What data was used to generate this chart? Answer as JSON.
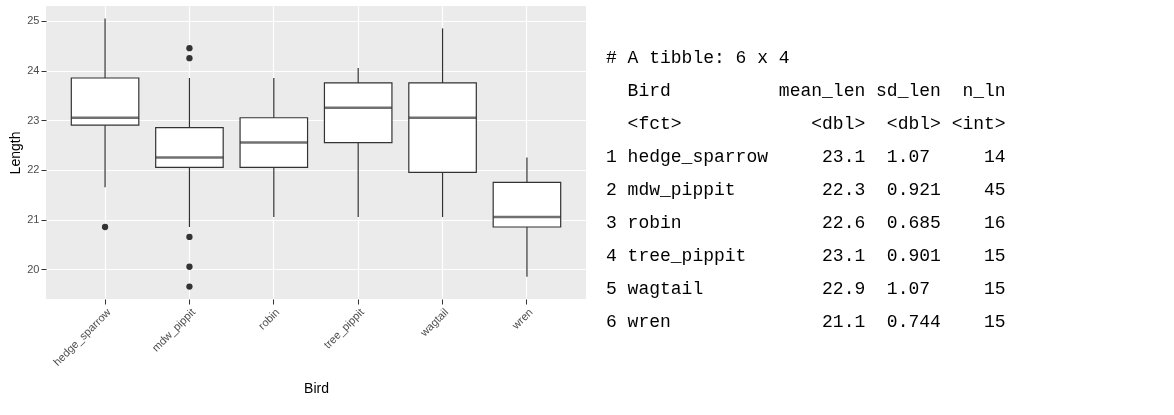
{
  "chart_data": [
    {
      "type": "box",
      "xlabel": "Bird",
      "ylabel": "Length",
      "categories": [
        "hedge_sparrow",
        "mdw_pippit",
        "robin",
        "tree_pippit",
        "wagtail",
        "wren"
      ],
      "boxes": [
        {
          "low": 21.65,
          "q1": 22.9,
          "median": 23.05,
          "q3": 23.85,
          "high": 25.05,
          "outliers": [
            20.85
          ]
        },
        {
          "low": 20.85,
          "q1": 22.05,
          "median": 22.25,
          "q3": 22.85,
          "high": 23.85,
          "outliers": [
            24.45,
            24.25,
            20.65,
            20.05,
            19.65
          ]
        },
        {
          "low": 21.05,
          "q1": 22.05,
          "median": 22.55,
          "q3": 23.05,
          "high": 23.85
        },
        {
          "low": 21.05,
          "q1": 22.55,
          "median": 23.25,
          "q3": 23.75,
          "high": 24.05
        },
        {
          "low": 21.05,
          "q1": 21.95,
          "median": 23.05,
          "q3": 23.75,
          "high": 24.85
        },
        {
          "low": 19.85,
          "q1": 20.85,
          "median": 21.05,
          "q3": 21.75,
          "high": 22.25
        }
      ],
      "ylim": [
        19.4,
        25.3
      ],
      "yticks": [
        20,
        21,
        22,
        23,
        24,
        25
      ],
      "grid": true
    },
    {
      "type": "other",
      "annotations": [
        "# A tibble: 6 x 4",
        "  Bird          mean_len sd_len  n_ln",
        "  <fct>            <dbl>  <dbl> <int>",
        "1 hedge_sparrow     23.1  1.07     14",
        "2 mdw_pippit        22.3  0.921    45",
        "3 robin             22.6  0.685    16",
        "4 tree_pippit       23.1  0.901    15",
        "5 wagtail           22.9  1.07     15",
        "6 wren              21.1  0.744    15"
      ]
    }
  ]
}
